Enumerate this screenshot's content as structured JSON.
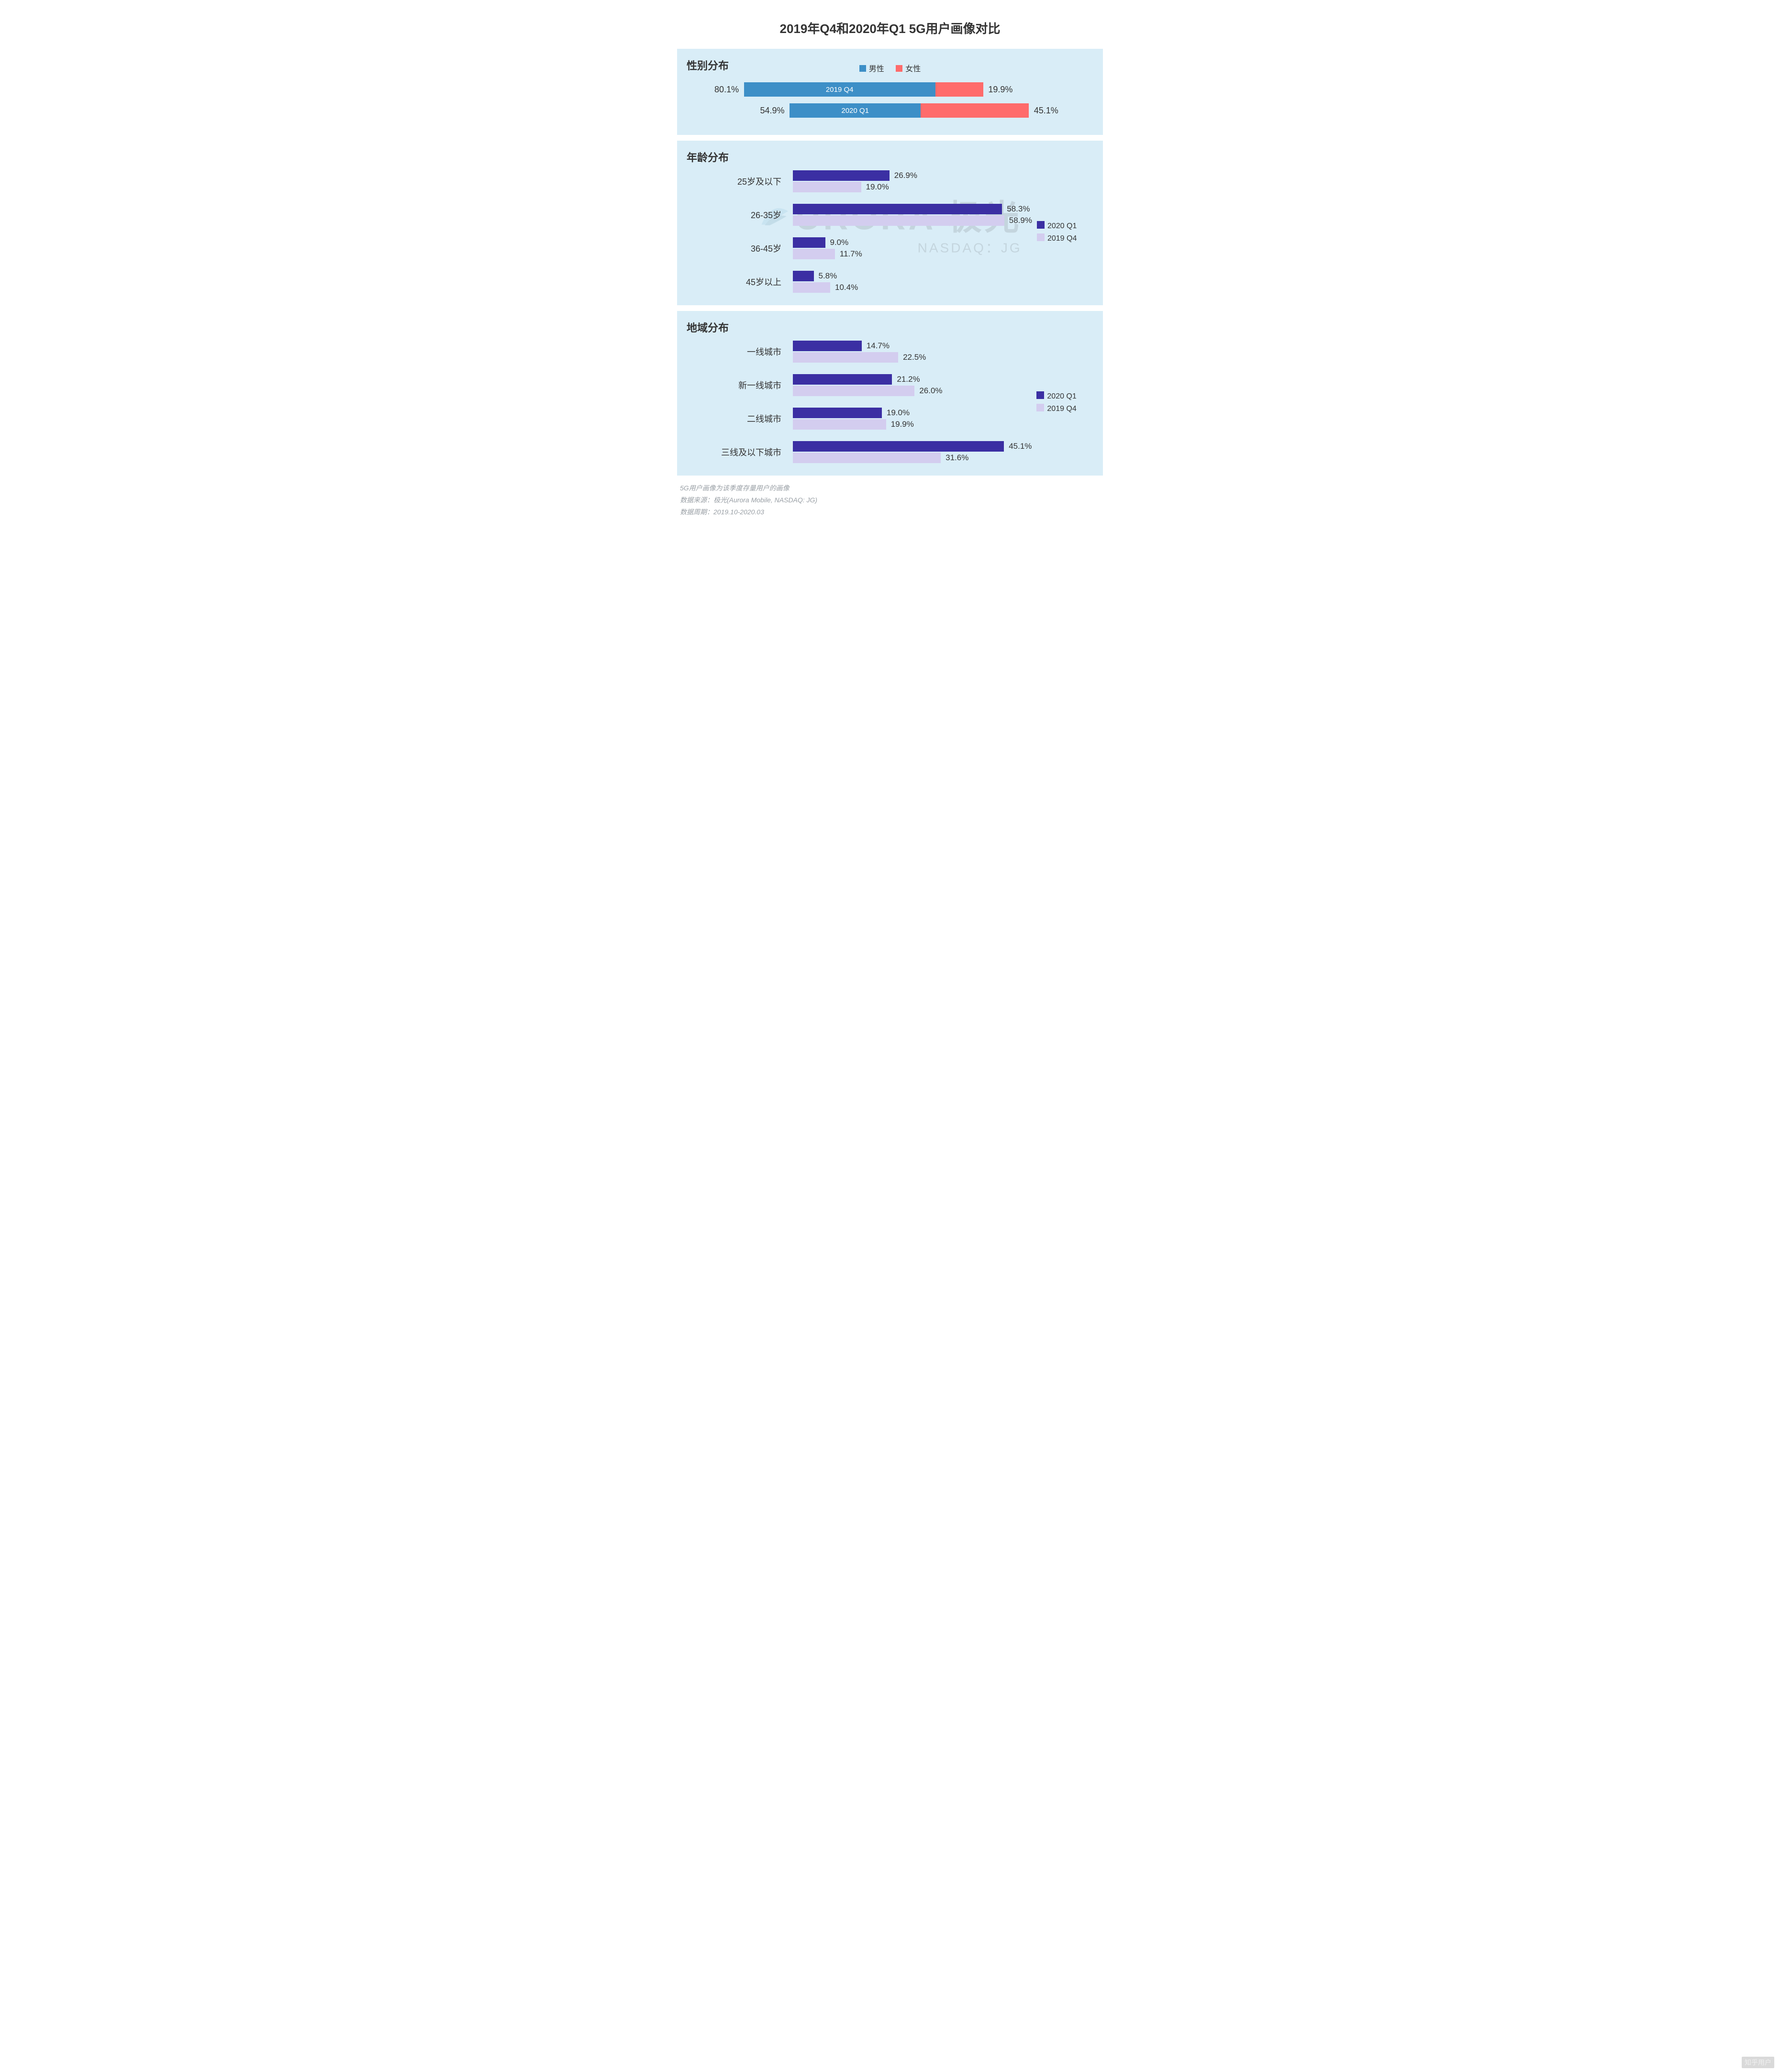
{
  "title": "2019年Q4和2020年Q1 5G用户画像对比",
  "colors": {
    "male": "#3d8fc7",
    "female": "#ff6b6b",
    "q1_2020": "#3b2fa3",
    "q4_2019": "#d3cdef",
    "panel_bg": "#d9edf7",
    "page_bg": "#ffffff",
    "text": "#333333",
    "footer_text": "#9aa0a6"
  },
  "gender": {
    "panel_title": "性别分布",
    "legend": {
      "male": "男性",
      "female": "女性"
    },
    "rows": [
      {
        "period": "2019 Q4",
        "male_pct": 80.1,
        "female_pct": 19.9,
        "male_w": 400,
        "female_w": 100,
        "pad_l": 74,
        "pad_r": 220
      },
      {
        "period": "2020 Q1",
        "male_pct": 54.9,
        "female_pct": 45.1,
        "male_w": 274,
        "female_w": 226,
        "pad_l": 200,
        "pad_r": 94
      }
    ]
  },
  "age": {
    "panel_title": "年龄分布",
    "legend": {
      "s1": "2020 Q1",
      "s2": "2019 Q4"
    },
    "max": 60,
    "bar_area_w": 450,
    "groups": [
      {
        "label": "25岁及以下",
        "v1": 26.9,
        "v2": 19.0
      },
      {
        "label": "26-35岁",
        "v1": 58.3,
        "v2": 58.9
      },
      {
        "label": "36-45岁",
        "v1": 9.0,
        "v2": 11.7
      },
      {
        "label": "45岁以上",
        "v1": 5.8,
        "v2": 10.4
      }
    ]
  },
  "region": {
    "panel_title": "地域分布",
    "legend": {
      "s1": "2020 Q1",
      "s2": "2019 Q4"
    },
    "max": 46,
    "bar_area_w": 450,
    "groups": [
      {
        "label": "一线城市",
        "v1": 14.7,
        "v2": 22.5
      },
      {
        "label": "新一线城市",
        "v1": 21.2,
        "v2": 26.0
      },
      {
        "label": "二线城市",
        "v1": 19.0,
        "v2": 19.9
      },
      {
        "label": "三线及以下城市",
        "v1": 45.1,
        "v2": 31.6
      }
    ]
  },
  "footer": {
    "line1": "5G用户画像为该季度存量用户的画像",
    "line2": "数据来源：极光(Aurora Mobile, NASDAQ: JG)",
    "line3": "数据周期：2019.10-2020.03"
  },
  "watermark": {
    "text1": "URORA 极光",
    "text2": "NASDAQ：JG"
  },
  "zhihu": "知乎用户"
}
